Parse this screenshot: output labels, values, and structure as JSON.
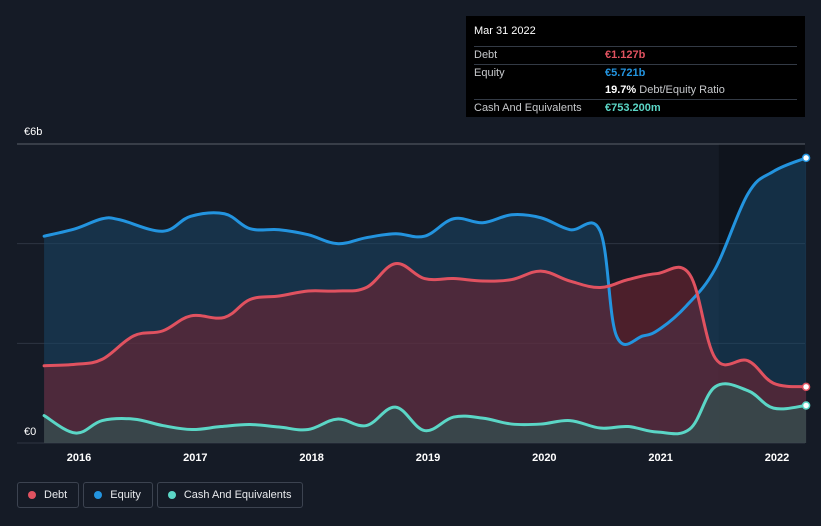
{
  "chart_data": {
    "type": "area",
    "title": "",
    "xlabel": "",
    "ylabel": "",
    "ylim": [
      0,
      6
    ],
    "y_unit_prefix": "€",
    "y_tick_labels": [
      {
        "value": 6,
        "label": "€6b"
      },
      {
        "value": 0,
        "label": "€0"
      }
    ],
    "y_gridlines": [
      0,
      2,
      4,
      6
    ],
    "x_range": [
      2015.7,
      2022.25
    ],
    "x_ticks": [
      {
        "value": 2016,
        "label": "2016"
      },
      {
        "value": 2017,
        "label": "2017"
      },
      {
        "value": 2018,
        "label": "2018"
      },
      {
        "value": 2019,
        "label": "2019"
      },
      {
        "value": 2020,
        "label": "2020"
      },
      {
        "value": 2021,
        "label": "2021"
      },
      {
        "value": 2022,
        "label": "2022"
      }
    ],
    "series": [
      {
        "name": "Equity",
        "color": "#2394df",
        "fill": "#1a4566",
        "x": [
          2015.7,
          2015.97,
          2016.2,
          2016.35,
          2016.72,
          2016.96,
          2017.25,
          2017.47,
          2017.72,
          2017.97,
          2018.22,
          2018.47,
          2018.72,
          2018.97,
          2019.22,
          2019.47,
          2019.72,
          2019.97,
          2020.22,
          2020.48,
          2020.62,
          2020.85,
          2021.0,
          2021.22,
          2021.47,
          2021.75,
          2021.97,
          2022.25
        ],
        "values": [
          4.15,
          4.3,
          4.5,
          4.48,
          4.25,
          4.55,
          4.6,
          4.3,
          4.28,
          4.18,
          4.0,
          4.12,
          4.2,
          4.15,
          4.5,
          4.42,
          4.58,
          4.52,
          4.28,
          4.25,
          2.15,
          2.15,
          2.3,
          2.75,
          3.5,
          5.0,
          5.45,
          5.721
        ]
      },
      {
        "name": "Debt",
        "color": "#e05260",
        "fill": "#7a2230",
        "x": [
          2015.7,
          2015.97,
          2016.2,
          2016.47,
          2016.72,
          2016.96,
          2017.25,
          2017.47,
          2017.72,
          2017.97,
          2018.22,
          2018.47,
          2018.72,
          2018.97,
          2019.22,
          2019.47,
          2019.72,
          2019.97,
          2020.22,
          2020.48,
          2020.72,
          2020.97,
          2021.25,
          2021.47,
          2021.75,
          2021.97,
          2022.25
        ],
        "values": [
          1.55,
          1.58,
          1.68,
          2.15,
          2.25,
          2.55,
          2.52,
          2.88,
          2.95,
          3.05,
          3.05,
          3.12,
          3.6,
          3.3,
          3.3,
          3.25,
          3.28,
          3.45,
          3.25,
          3.12,
          3.28,
          3.4,
          3.38,
          1.7,
          1.65,
          1.2,
          1.127
        ]
      },
      {
        "name": "Cash And Equivalents",
        "color": "#5bd6c6",
        "fill": "#2a5c58",
        "x": [
          2015.7,
          2015.97,
          2016.2,
          2016.47,
          2016.72,
          2016.97,
          2017.22,
          2017.47,
          2017.72,
          2017.97,
          2018.22,
          2018.47,
          2018.72,
          2018.97,
          2019.22,
          2019.47,
          2019.72,
          2019.97,
          2020.22,
          2020.48,
          2020.72,
          2020.97,
          2021.25,
          2021.47,
          2021.75,
          2021.97,
          2022.25
        ],
        "values": [
          0.55,
          0.2,
          0.45,
          0.48,
          0.35,
          0.27,
          0.33,
          0.37,
          0.32,
          0.27,
          0.48,
          0.35,
          0.72,
          0.25,
          0.52,
          0.5,
          0.38,
          0.38,
          0.45,
          0.3,
          0.33,
          0.22,
          0.28,
          1.13,
          1.05,
          0.7,
          0.753
        ]
      }
    ],
    "forecast_shading_start": 2021.5
  },
  "tooltip": {
    "date": "Mar 31 2022",
    "rows": [
      {
        "label": "Debt",
        "value": "€1.127b",
        "color": "#e05260",
        "suffix": ""
      },
      {
        "label": "Equity",
        "value": "€5.721b",
        "color": "#2394df",
        "suffix": ""
      },
      {
        "label": "",
        "value": "19.7%",
        "color": "#ffffff",
        "suffix": "Debt/Equity Ratio"
      },
      {
        "label": "Cash And Equivalents",
        "value": "€753.200m",
        "color": "#5bd6c6",
        "suffix": ""
      }
    ]
  },
  "legend": {
    "items": [
      {
        "label": "Debt",
        "color": "#e05260"
      },
      {
        "label": "Equity",
        "color": "#2394df"
      },
      {
        "label": "Cash And Equivalents",
        "color": "#5bd6c6"
      }
    ]
  }
}
